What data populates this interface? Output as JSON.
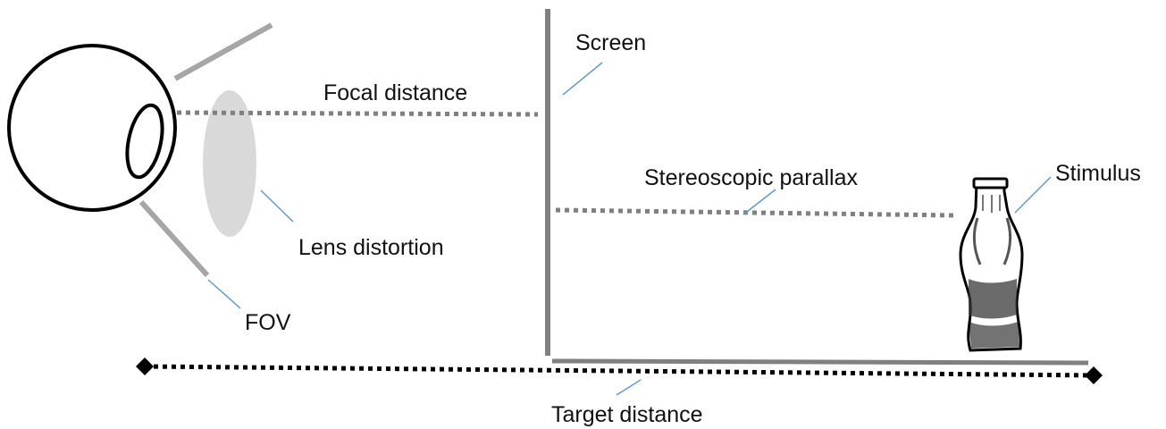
{
  "labels": {
    "focal_distance": "Focal distance",
    "screen": "Screen",
    "stereoscopic_parallax": "Stereoscopic parallax",
    "stimulus": "Stimulus",
    "lens_distortion": "Lens distortion",
    "fov": "FOV",
    "target_distance": "Target distance"
  },
  "colors": {
    "outline": "#000000",
    "gray_line": "#a6a6a6",
    "lens_fill": "#d9d9d9",
    "leader_line": "#5b9bd5",
    "dotted_gray": "#808080"
  }
}
